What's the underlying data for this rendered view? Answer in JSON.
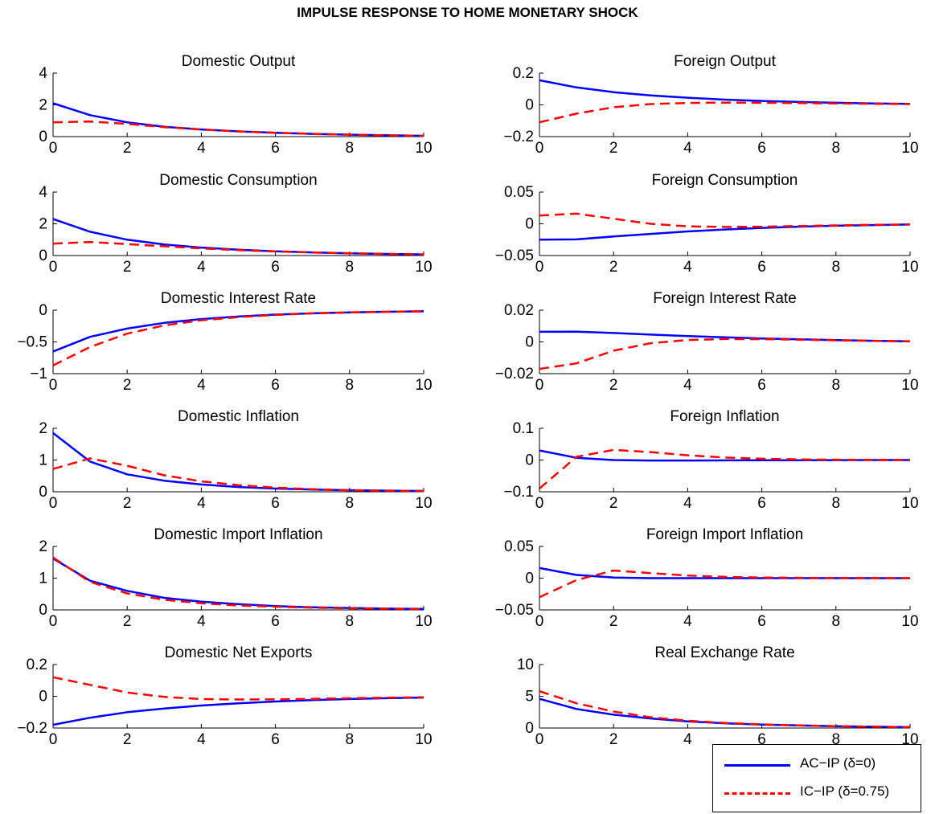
{
  "figure_title": "IMPULSE RESPONSE TO HOME MONETARY SHOCK",
  "legend": [
    {
      "label": "AC−IP (δ=0)",
      "color": "#0000ff",
      "style": "solid"
    },
    {
      "label": "IC−IP (δ=0.75)",
      "color": "#ff0000",
      "style": "dashed"
    }
  ],
  "chart_data": [
    {
      "type": "line",
      "title": "Domestic Output",
      "x": [
        0,
        1,
        2,
        3,
        4,
        5,
        6,
        7,
        8,
        9,
        10
      ],
      "xlim": [
        0,
        10
      ],
      "xticks": [
        "0",
        "2",
        "4",
        "6",
        "8",
        "10"
      ],
      "ylim": [
        0,
        4
      ],
      "yticks": [
        0,
        2,
        4
      ],
      "ytick_labels": [
        "0",
        "2",
        "4"
      ],
      "series": [
        {
          "name": "AC−IP (δ=0)",
          "values": [
            2.1,
            1.35,
            0.9,
            0.62,
            0.45,
            0.33,
            0.24,
            0.17,
            0.12,
            0.08,
            0.05
          ]
        },
        {
          "name": "IC−IP (δ=0.75)",
          "values": [
            0.9,
            0.95,
            0.8,
            0.6,
            0.45,
            0.33,
            0.24,
            0.17,
            0.12,
            0.08,
            0.05
          ]
        }
      ]
    },
    {
      "type": "line",
      "title": "Foreign Output",
      "x": [
        0,
        1,
        2,
        3,
        4,
        5,
        6,
        7,
        8,
        9,
        10
      ],
      "xlim": [
        0,
        10
      ],
      "xticks": [
        "0",
        "2",
        "4",
        "6",
        "8",
        "10"
      ],
      "ylim": [
        -0.2,
        0.2
      ],
      "yticks": [
        -0.2,
        0,
        0.2
      ],
      "ytick_labels": [
        "−0.2",
        "0",
        "0.2"
      ],
      "series": [
        {
          "name": "AC−IP (δ=0)",
          "values": [
            0.155,
            0.11,
            0.08,
            0.06,
            0.045,
            0.033,
            0.025,
            0.018,
            0.013,
            0.009,
            0.006
          ]
        },
        {
          "name": "IC−IP (δ=0.75)",
          "values": [
            -0.11,
            -0.055,
            -0.015,
            0.005,
            0.012,
            0.014,
            0.013,
            0.011,
            0.009,
            0.007,
            0.005
          ]
        }
      ]
    },
    {
      "type": "line",
      "title": "Domestic Consumption",
      "x": [
        0,
        1,
        2,
        3,
        4,
        5,
        6,
        7,
        8,
        9,
        10
      ],
      "xlim": [
        0,
        10
      ],
      "xticks": [
        "0",
        "2",
        "4",
        "6",
        "8",
        "10"
      ],
      "ylim": [
        0,
        4
      ],
      "yticks": [
        0,
        2,
        4
      ],
      "ytick_labels": [
        "0",
        "2",
        "4"
      ],
      "series": [
        {
          "name": "AC−IP (δ=0)",
          "values": [
            2.3,
            1.5,
            1.0,
            0.7,
            0.5,
            0.37,
            0.27,
            0.2,
            0.14,
            0.1,
            0.07
          ]
        },
        {
          "name": "IC−IP (δ=0.75)",
          "values": [
            0.75,
            0.85,
            0.72,
            0.58,
            0.45,
            0.34,
            0.26,
            0.19,
            0.14,
            0.1,
            0.07
          ]
        }
      ]
    },
    {
      "type": "line",
      "title": "Foreign Consumption",
      "x": [
        0,
        1,
        2,
        3,
        4,
        5,
        6,
        7,
        8,
        9,
        10
      ],
      "xlim": [
        0,
        10
      ],
      "xticks": [
        "0",
        "2",
        "4",
        "6",
        "8",
        "10"
      ],
      "ylim": [
        -0.05,
        0.05
      ],
      "yticks": [
        -0.05,
        0,
        0.05
      ],
      "ytick_labels": [
        "−0.05",
        "0",
        "0.05"
      ],
      "series": [
        {
          "name": "AC−IP (δ=0)",
          "values": [
            -0.025,
            -0.0245,
            -0.02,
            -0.016,
            -0.012,
            -0.009,
            -0.0065,
            -0.0045,
            -0.003,
            -0.002,
            -0.0012
          ]
        },
        {
          "name": "IC−IP (δ=0.75)",
          "values": [
            0.013,
            0.016,
            0.008,
            0.0,
            -0.004,
            -0.005,
            -0.0045,
            -0.0035,
            -0.0025,
            -0.0017,
            -0.001
          ]
        }
      ]
    },
    {
      "type": "line",
      "title": "Domestic Interest Rate",
      "x": [
        0,
        1,
        2,
        3,
        4,
        5,
        6,
        7,
        8,
        9,
        10
      ],
      "xlim": [
        0,
        10
      ],
      "xticks": [
        "0",
        "2",
        "4",
        "6",
        "8",
        "10"
      ],
      "ylim": [
        -1,
        0
      ],
      "yticks": [
        -1,
        -0.5,
        0
      ],
      "ytick_labels": [
        "−1",
        "−0.5",
        "0"
      ],
      "series": [
        {
          "name": "AC−IP (δ=0)",
          "values": [
            -0.65,
            -0.42,
            -0.29,
            -0.2,
            -0.14,
            -0.1,
            -0.07,
            -0.05,
            -0.035,
            -0.025,
            -0.018
          ]
        },
        {
          "name": "IC−IP (δ=0.75)",
          "values": [
            -0.87,
            -0.58,
            -0.37,
            -0.24,
            -0.16,
            -0.11,
            -0.075,
            -0.05,
            -0.035,
            -0.025,
            -0.018
          ]
        }
      ]
    },
    {
      "type": "line",
      "title": "Foreign Interest Rate",
      "x": [
        0,
        1,
        2,
        3,
        4,
        5,
        6,
        7,
        8,
        9,
        10
      ],
      "xlim": [
        0,
        10
      ],
      "xticks": [
        "0",
        "2",
        "4",
        "6",
        "8",
        "10"
      ],
      "ylim": [
        -0.02,
        0.02
      ],
      "yticks": [
        -0.02,
        0,
        0.02
      ],
      "ytick_labels": [
        "−0.02",
        "0",
        "0.02"
      ],
      "series": [
        {
          "name": "AC−IP (δ=0)",
          "values": [
            0.0064,
            0.0065,
            0.0056,
            0.0046,
            0.0037,
            0.0029,
            0.0022,
            0.0016,
            0.0011,
            0.0007,
            0.0004
          ]
        },
        {
          "name": "IC−IP (δ=0.75)",
          "values": [
            -0.017,
            -0.0135,
            -0.0055,
            -0.0008,
            0.0012,
            0.0018,
            0.0017,
            0.0014,
            0.001,
            0.0007,
            0.0004
          ]
        }
      ]
    },
    {
      "type": "line",
      "title": "Domestic Inflation",
      "x": [
        0,
        1,
        2,
        3,
        4,
        5,
        6,
        7,
        8,
        9,
        10
      ],
      "xlim": [
        0,
        10
      ],
      "xticks": [
        "0",
        "2",
        "4",
        "6",
        "8",
        "10"
      ],
      "ylim": [
        0,
        2
      ],
      "yticks": [
        0,
        1,
        2
      ],
      "ytick_labels": [
        "0",
        "1",
        "2"
      ],
      "series": [
        {
          "name": "AC−IP (δ=0)",
          "values": [
            1.85,
            0.95,
            0.55,
            0.35,
            0.23,
            0.15,
            0.1,
            0.07,
            0.05,
            0.035,
            0.025
          ]
        },
        {
          "name": "IC−IP (δ=0.75)",
          "values": [
            0.72,
            1.05,
            0.82,
            0.52,
            0.33,
            0.21,
            0.13,
            0.08,
            0.05,
            0.035,
            0.025
          ]
        }
      ]
    },
    {
      "type": "line",
      "title": "Foreign Inflation",
      "x": [
        0,
        1,
        2,
        3,
        4,
        5,
        6,
        7,
        8,
        9,
        10
      ],
      "xlim": [
        0,
        10
      ],
      "xticks": [
        "0",
        "2",
        "4",
        "6",
        "8",
        "10"
      ],
      "ylim": [
        -0.1,
        0.1
      ],
      "yticks": [
        -0.1,
        0,
        0.1
      ],
      "ytick_labels": [
        "−0.1",
        "0",
        "0.1"
      ],
      "series": [
        {
          "name": "AC−IP (δ=0)",
          "values": [
            0.03,
            0.007,
            0.0,
            -0.0015,
            -0.0015,
            -0.001,
            -0.0007,
            -0.0004,
            -0.0002,
            -0.0001,
            0.0
          ]
        },
        {
          "name": "IC−IP (δ=0.75)",
          "values": [
            -0.09,
            0.01,
            0.032,
            0.025,
            0.015,
            0.008,
            0.004,
            0.002,
            0.001,
            0.0005,
            0.0
          ]
        }
      ]
    },
    {
      "type": "line",
      "title": "Domestic Import Inflation",
      "x": [
        0,
        1,
        2,
        3,
        4,
        5,
        6,
        7,
        8,
        9,
        10
      ],
      "xlim": [
        0,
        10
      ],
      "xticks": [
        "0",
        "2",
        "4",
        "6",
        "8",
        "10"
      ],
      "ylim": [
        0,
        2
      ],
      "yticks": [
        0,
        1,
        2
      ],
      "ytick_labels": [
        "0",
        "1",
        "2"
      ],
      "series": [
        {
          "name": "AC−IP (δ=0)",
          "values": [
            1.62,
            0.92,
            0.6,
            0.38,
            0.26,
            0.18,
            0.12,
            0.08,
            0.06,
            0.04,
            0.03
          ]
        },
        {
          "name": "IC−IP (δ=0.75)",
          "values": [
            1.65,
            0.88,
            0.52,
            0.32,
            0.21,
            0.14,
            0.1,
            0.07,
            0.05,
            0.035,
            0.025
          ]
        }
      ]
    },
    {
      "type": "line",
      "title": "Foreign Import Inflation",
      "x": [
        0,
        1,
        2,
        3,
        4,
        5,
        6,
        7,
        8,
        9,
        10
      ],
      "xlim": [
        0,
        10
      ],
      "xticks": [
        "0",
        "2",
        "4",
        "6",
        "8",
        "10"
      ],
      "ylim": [
        -0.05,
        0.05
      ],
      "yticks": [
        -0.05,
        0,
        0.05
      ],
      "ytick_labels": [
        "−0.05",
        "0",
        "0.05"
      ],
      "series": [
        {
          "name": "AC−IP (δ=0)",
          "values": [
            0.016,
            0.005,
            0.001,
            0.0,
            0.0,
            0.0,
            0.0,
            0.0,
            0.0,
            0.0,
            0.0
          ]
        },
        {
          "name": "IC−IP (δ=0.75)",
          "values": [
            -0.03,
            -0.003,
            0.012,
            0.008,
            0.004,
            0.002,
            0.001,
            0.0005,
            0.0002,
            0.0001,
            0.0
          ]
        }
      ]
    },
    {
      "type": "line",
      "title": "Domestic Net Exports",
      "x": [
        0,
        1,
        2,
        3,
        4,
        5,
        6,
        7,
        8,
        9,
        10
      ],
      "xlim": [
        0,
        10
      ],
      "xticks": [
        "0",
        "2",
        "4",
        "6",
        "8",
        "10"
      ],
      "ylim": [
        -0.2,
        0.2
      ],
      "yticks": [
        -0.2,
        0,
        0.2
      ],
      "ytick_labels": [
        "−0.2",
        "0",
        "0.2"
      ],
      "series": [
        {
          "name": "AC−IP (δ=0)",
          "values": [
            -0.18,
            -0.135,
            -0.1,
            -0.077,
            -0.058,
            -0.044,
            -0.033,
            -0.024,
            -0.017,
            -0.012,
            -0.008
          ]
        },
        {
          "name": "IC−IP (δ=0.75)",
          "values": [
            0.12,
            0.072,
            0.024,
            -0.004,
            -0.017,
            -0.02,
            -0.019,
            -0.016,
            -0.012,
            -0.009,
            -0.006
          ]
        }
      ]
    },
    {
      "type": "line",
      "title": "Real Exchange Rate",
      "x": [
        0,
        1,
        2,
        3,
        4,
        5,
        6,
        7,
        8,
        9,
        10
      ],
      "xlim": [
        0,
        10
      ],
      "xticks": [
        "0",
        "2",
        "4",
        "6",
        "8",
        "10"
      ],
      "ylim": [
        0,
        10
      ],
      "yticks": [
        0,
        5,
        10
      ],
      "ytick_labels": [
        "0",
        "5",
        "10"
      ],
      "series": [
        {
          "name": "AC−IP (δ=0)",
          "values": [
            4.6,
            3.0,
            2.1,
            1.5,
            1.05,
            0.75,
            0.55,
            0.4,
            0.28,
            0.2,
            0.14
          ]
        },
        {
          "name": "IC−IP (δ=0.75)",
          "values": [
            5.8,
            3.9,
            2.6,
            1.7,
            1.15,
            0.8,
            0.57,
            0.4,
            0.28,
            0.2,
            0.14
          ]
        }
      ]
    }
  ]
}
